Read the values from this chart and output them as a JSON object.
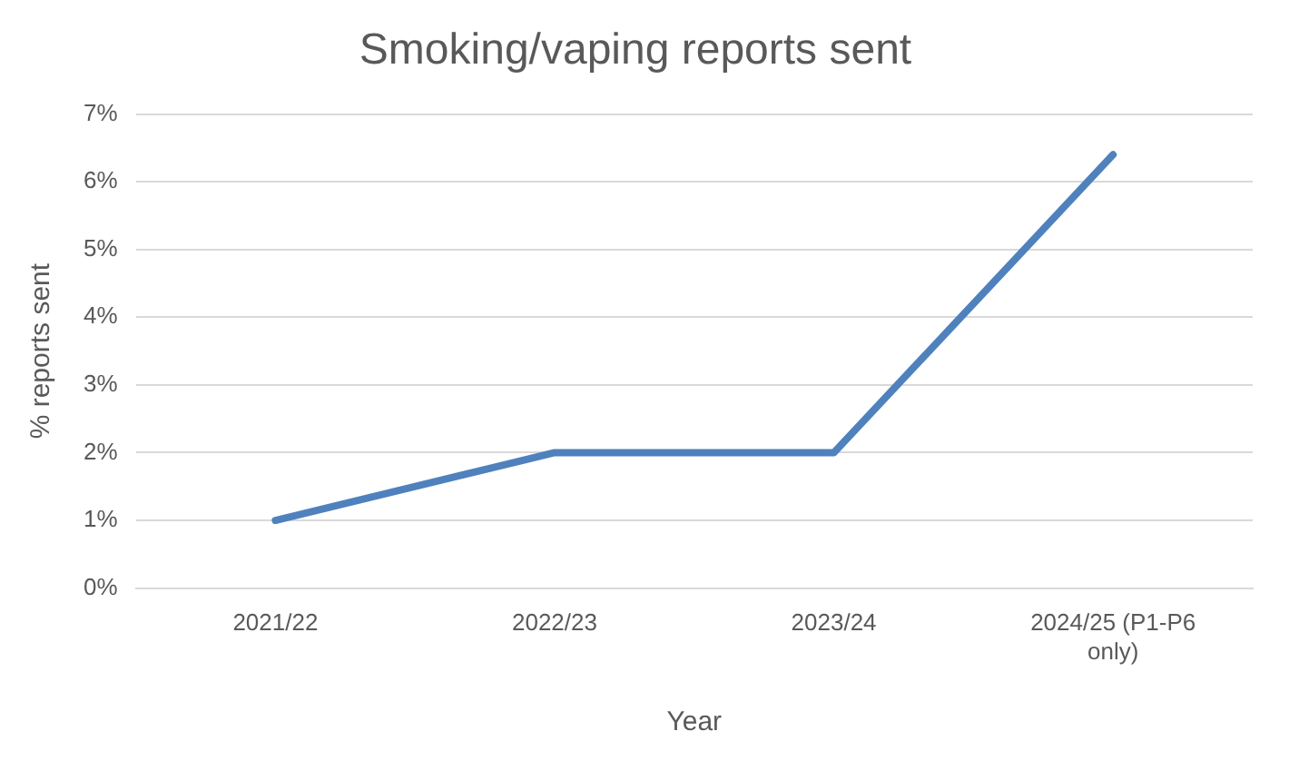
{
  "chart_data": {
    "type": "line",
    "title": "Smoking/vaping reports sent",
    "xlabel": "Year",
    "ylabel": "% reports sent",
    "categories": [
      "2021/22",
      "2022/23",
      "2023/24",
      "2024/25 (P1-P6 only)"
    ],
    "series": [
      {
        "color": "#4f81bd",
        "values": [
          1,
          2,
          2,
          6.4
        ]
      }
    ],
    "ylim": [
      0,
      7
    ],
    "yticks": [
      {
        "value": 0,
        "label": "0%"
      },
      {
        "value": 1,
        "label": "1%"
      },
      {
        "value": 2,
        "label": "2%"
      },
      {
        "value": 3,
        "label": "3%"
      },
      {
        "value": 4,
        "label": "4%"
      },
      {
        "value": 5,
        "label": "5%"
      },
      {
        "value": 6,
        "label": "6%"
      },
      {
        "value": 7,
        "label": "7%"
      }
    ],
    "grid": "y",
    "legend": false,
    "marker": "none",
    "line_style": "solid"
  }
}
